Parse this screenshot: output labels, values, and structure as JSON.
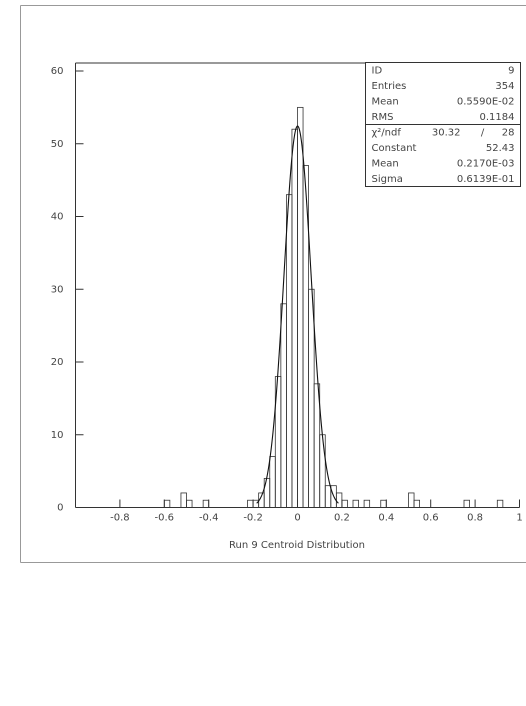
{
  "chart_data": {
    "type": "histogram",
    "xlabel": "Run 9 Centroid Distribution",
    "bins": [
      -1,
      -0.975,
      -0.95,
      -0.925,
      -0.9,
      -0.875,
      -0.85,
      -0.825,
      -0.8,
      -0.775,
      -0.75,
      -0.725,
      -0.7,
      -0.675,
      -0.65,
      -0.625,
      -0.6,
      -0.575,
      -0.55,
      -0.525,
      -0.5,
      -0.475,
      -0.45,
      -0.425,
      -0.4,
      -0.375,
      -0.35,
      -0.325,
      -0.3,
      -0.275,
      -0.25,
      -0.225,
      -0.2,
      -0.175,
      -0.15,
      -0.125,
      -0.1,
      -0.075,
      -0.05,
      -0.025,
      0,
      0.025,
      0.05,
      0.075,
      0.1,
      0.125,
      0.15,
      0.175,
      0.2,
      0.225,
      0.25,
      0.275,
      0.3,
      0.325,
      0.35,
      0.375,
      0.4,
      0.425,
      0.45,
      0.475,
      0.5,
      0.525,
      0.55,
      0.575,
      0.6,
      0.625,
      0.65,
      0.675,
      0.7,
      0.725,
      0.75,
      0.775,
      0.8,
      0.825,
      0.85,
      0.875,
      0.9,
      0.925,
      0.95,
      0.975,
      1
    ],
    "values": [
      0,
      0,
      0,
      0,
      0,
      0,
      0,
      0,
      0,
      0,
      0,
      0,
      0,
      0,
      0,
      0,
      1,
      0,
      0,
      2,
      1,
      0,
      0,
      1,
      0,
      0,
      0,
      0,
      0,
      0,
      0,
      1,
      1,
      2,
      4,
      7,
      18,
      28,
      43,
      52,
      55,
      47,
      30,
      17,
      10,
      3,
      3,
      2,
      1,
      0,
      1,
      0,
      1,
      0,
      0,
      1,
      0,
      0,
      0,
      0,
      2,
      1,
      0,
      0,
      0,
      0,
      0,
      0,
      0,
      0,
      1,
      0,
      0,
      0,
      0,
      0,
      1,
      0,
      0,
      0
    ],
    "color": "#333333",
    "xlim": [
      -1,
      1
    ],
    "xticks": [
      -0.8,
      -0.6,
      -0.4,
      -0.2,
      0,
      0.2,
      0.4,
      0.6,
      0.8,
      1
    ],
    "ylim": [
      0,
      60
    ],
    "yticks": [
      0,
      10,
      20,
      30,
      40,
      50,
      60
    ],
    "stats": [
      {
        "name": "ID",
        "label": "9"
      },
      {
        "name": "Entries",
        "label": "354"
      },
      {
        "name": "Mean",
        "label": "0.5590E-02"
      },
      {
        "name": "RMS",
        "label": "0.1184"
      }
    ],
    "chi2": {
      "name": "χ²/ndf",
      "value": "30.32",
      "sep": "/",
      "ndf": "28"
    },
    "fit": [
      {
        "name": "Constant",
        "value": 52.43,
        "label": "52.43"
      },
      {
        "name": "Mean",
        "value": 0.000217,
        "label": "0.2170E-03"
      },
      {
        "name": "Sigma",
        "value": 0.06139,
        "label": "0.6139E-01"
      }
    ]
  }
}
